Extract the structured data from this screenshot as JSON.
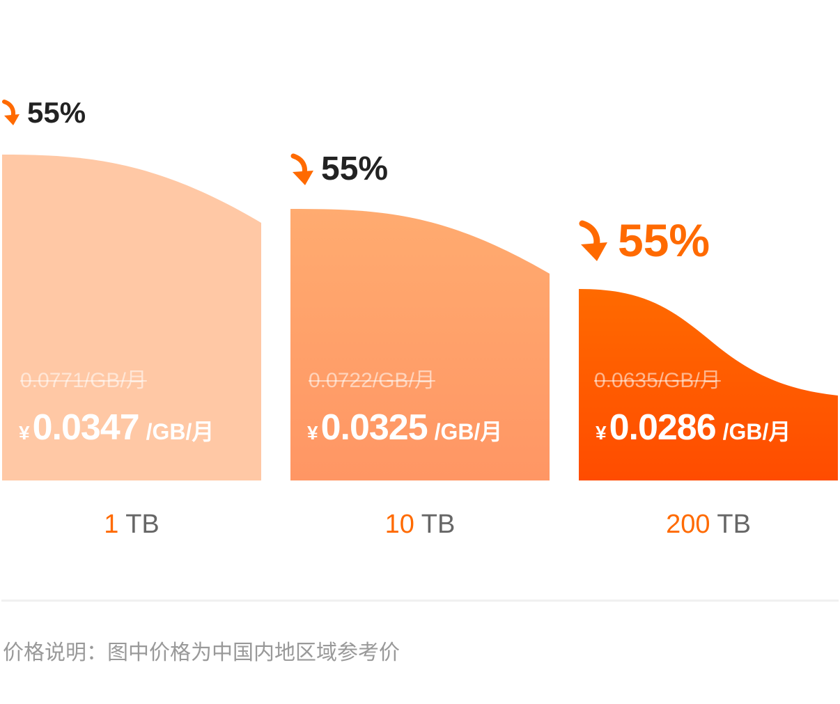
{
  "tiers": [
    {
      "discount": "55%",
      "original": "0.0771/GB/月",
      "currency": "¥",
      "price": "0.0347",
      "unit": "/GB/月",
      "capacity_value": "1",
      "capacity_unit": "TB"
    },
    {
      "discount": "55%",
      "original": "0.0722/GB/月",
      "currency": "¥",
      "price": "0.0325",
      "unit": "/GB/月",
      "capacity_value": "10",
      "capacity_unit": "TB"
    },
    {
      "discount": "55%",
      "original": "0.0635/GB/月",
      "currency": "¥",
      "price": "0.0286",
      "unit": "/GB/月",
      "capacity_value": "200",
      "capacity_unit": "TB"
    }
  ],
  "note": "价格说明：图中价格为中国内地区域参考价",
  "icons": {
    "discount": "arrow-down-icon"
  },
  "colors": {
    "accent": "#ff6a00",
    "tier1_fill": "#ffc8a5",
    "tier2_fill_top": "#ffab70",
    "tier2_fill_bottom": "#ff9664",
    "tier3_fill_top": "#ff6a00",
    "tier3_fill_bottom": "#ff4c00",
    "caption_unit": "#666666",
    "note": "#999999"
  }
}
